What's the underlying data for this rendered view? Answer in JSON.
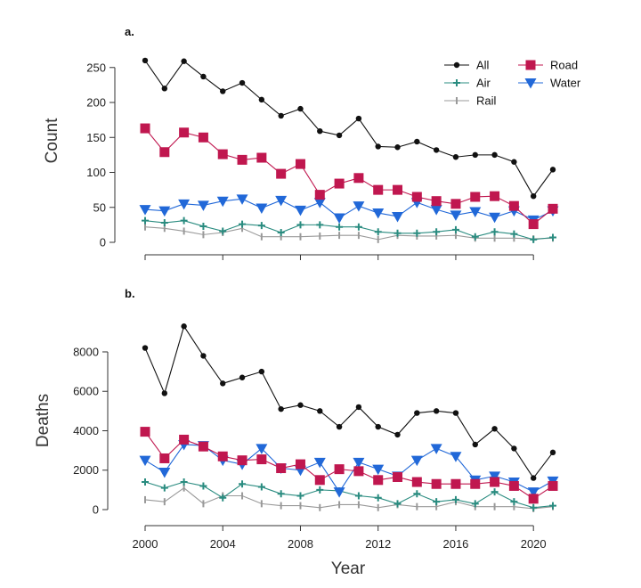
{
  "chart_data": [
    {
      "type": "line",
      "panel_label": "a.",
      "ylabel": "Count",
      "xlabel": "",
      "xlim": [
        2000,
        2021
      ],
      "ylim": [
        0,
        265
      ],
      "yticks": [
        0,
        50,
        100,
        150,
        200,
        250
      ],
      "x": [
        2000,
        2001,
        2002,
        2003,
        2004,
        2005,
        2006,
        2007,
        2008,
        2009,
        2010,
        2011,
        2012,
        2013,
        2014,
        2015,
        2016,
        2017,
        2018,
        2019,
        2020,
        2021
      ],
      "legend_position": "top-right",
      "series": [
        {
          "name": "All",
          "color": "#111111",
          "marker": "circle",
          "values": [
            260,
            220,
            259,
            237,
            216,
            228,
            204,
            181,
            191,
            159,
            153,
            177,
            137,
            136,
            144,
            132,
            122,
            125,
            125,
            115,
            66,
            104
          ]
        },
        {
          "name": "Road",
          "color": "#c0174f",
          "marker": "square",
          "values": [
            163,
            129,
            157,
            150,
            126,
            118,
            121,
            98,
            112,
            68,
            84,
            92,
            75,
            75,
            65,
            59,
            55,
            65,
            66,
            52,
            26,
            48
          ]
        },
        {
          "name": "Water",
          "color": "#2168d8",
          "marker": "triangle-down",
          "values": [
            47,
            45,
            55,
            53,
            59,
            62,
            49,
            60,
            46,
            57,
            35,
            52,
            42,
            37,
            57,
            47,
            39,
            44,
            36,
            45,
            32,
            45
          ]
        },
        {
          "name": "Air",
          "color": "#2a8c80",
          "marker": "plus",
          "values": [
            31,
            28,
            31,
            23,
            16,
            26,
            24,
            14,
            25,
            25,
            22,
            22,
            15,
            13,
            13,
            15,
            18,
            8,
            15,
            12,
            4,
            7
          ]
        },
        {
          "name": "Rail",
          "color": "#999999",
          "marker": "vbar",
          "values": [
            22,
            20,
            16,
            11,
            14,
            20,
            8,
            8,
            8,
            9,
            10,
            10,
            4,
            10,
            9,
            9,
            10,
            6,
            6,
            6,
            5,
            6
          ]
        }
      ]
    },
    {
      "type": "line",
      "panel_label": "b.",
      "ylabel": "Deaths",
      "xlabel": "Year",
      "xlim": [
        2000,
        2021
      ],
      "ylim": [
        0,
        9400
      ],
      "yticks": [
        0,
        2000,
        4000,
        6000,
        8000
      ],
      "xticks": [
        2000,
        2004,
        2008,
        2012,
        2016,
        2020
      ],
      "x": [
        2000,
        2001,
        2002,
        2003,
        2004,
        2005,
        2006,
        2007,
        2008,
        2009,
        2010,
        2011,
        2012,
        2013,
        2014,
        2015,
        2016,
        2017,
        2018,
        2019,
        2020,
        2021
      ],
      "series": [
        {
          "name": "All",
          "color": "#111111",
          "marker": "circle",
          "values": [
            8200,
            5900,
            9300,
            7800,
            6400,
            6700,
            7000,
            5100,
            5300,
            5000,
            4200,
            5200,
            4200,
            3800,
            4900,
            5000,
            4900,
            3300,
            4100,
            3100,
            1600,
            2900
          ]
        },
        {
          "name": "Road",
          "color": "#c0174f",
          "marker": "square",
          "values": [
            3950,
            2600,
            3550,
            3200,
            2700,
            2500,
            2550,
            2100,
            2300,
            1500,
            2050,
            1950,
            1500,
            1650,
            1400,
            1300,
            1300,
            1300,
            1400,
            1200,
            550,
            1200
          ]
        },
        {
          "name": "Water",
          "color": "#2168d8",
          "marker": "triangle-down",
          "values": [
            2500,
            1900,
            3300,
            3250,
            2500,
            2300,
            3100,
            2100,
            2000,
            2400,
            900,
            2400,
            2050,
            1700,
            2500,
            3100,
            2700,
            1500,
            1700,
            1400,
            900,
            1450
          ]
        },
        {
          "name": "Air",
          "color": "#2a8c80",
          "marker": "plus",
          "values": [
            1400,
            1100,
            1400,
            1200,
            600,
            1300,
            1150,
            800,
            700,
            1000,
            950,
            700,
            600,
            300,
            800,
            400,
            500,
            300,
            900,
            400,
            100,
            200
          ]
        },
        {
          "name": "Rail",
          "color": "#999999",
          "marker": "vbar",
          "values": [
            500,
            400,
            1100,
            300,
            700,
            700,
            300,
            200,
            200,
            100,
            250,
            250,
            100,
            250,
            150,
            150,
            400,
            150,
            150,
            150,
            50,
            150
          ]
        }
      ]
    }
  ]
}
